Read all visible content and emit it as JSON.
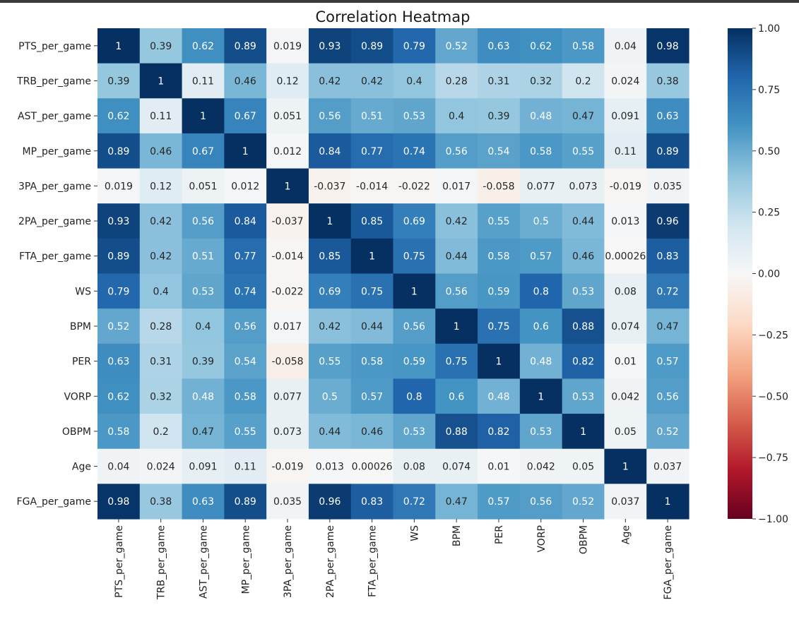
{
  "chart_data": {
    "type": "heatmap",
    "title": "Correlation Heatmap",
    "variables": [
      "PTS_per_game",
      "TRB_per_game",
      "AST_per_game",
      "MP_per_game",
      "3PA_per_game",
      "2PA_per_game",
      "FTA_per_game",
      "WS",
      "BPM",
      "PER",
      "VORP",
      "OBPM",
      "Age",
      "FGA_per_game"
    ],
    "matrix": [
      [
        1,
        0.39,
        0.62,
        0.89,
        0.019,
        0.93,
        0.89,
        0.79,
        0.52,
        0.63,
        0.62,
        0.58,
        0.04,
        0.98
      ],
      [
        0.39,
        1,
        0.11,
        0.46,
        0.12,
        0.42,
        0.42,
        0.4,
        0.28,
        0.31,
        0.32,
        0.2,
        0.024,
        0.38
      ],
      [
        0.62,
        0.11,
        1,
        0.67,
        0.051,
        0.56,
        0.51,
        0.53,
        0.4,
        0.39,
        0.48,
        0.47,
        0.091,
        0.63
      ],
      [
        0.89,
        0.46,
        0.67,
        1,
        0.012,
        0.84,
        0.77,
        0.74,
        0.56,
        0.54,
        0.58,
        0.55,
        0.11,
        0.89
      ],
      [
        0.019,
        0.12,
        0.051,
        0.012,
        1,
        -0.037,
        -0.014,
        -0.022,
        0.017,
        -0.058,
        0.077,
        0.073,
        -0.019,
        0.035
      ],
      [
        0.93,
        0.42,
        0.56,
        0.84,
        -0.037,
        1,
        0.85,
        0.69,
        0.42,
        0.55,
        0.5,
        0.44,
        0.013,
        0.96
      ],
      [
        0.89,
        0.42,
        0.51,
        0.77,
        -0.014,
        0.85,
        1,
        0.75,
        0.44,
        0.58,
        0.57,
        0.46,
        0.00026,
        0.83
      ],
      [
        0.79,
        0.4,
        0.53,
        0.74,
        -0.022,
        0.69,
        0.75,
        1,
        0.56,
        0.59,
        0.8,
        0.53,
        0.08,
        0.72
      ],
      [
        0.52,
        0.28,
        0.4,
        0.56,
        0.017,
        0.42,
        0.44,
        0.56,
        1,
        0.75,
        0.6,
        0.88,
        0.074,
        0.47
      ],
      [
        0.63,
        0.31,
        0.39,
        0.54,
        -0.058,
        0.55,
        0.58,
        0.59,
        0.75,
        1,
        0.48,
        0.82,
        0.01,
        0.57
      ],
      [
        0.62,
        0.32,
        0.48,
        0.58,
        0.077,
        0.5,
        0.57,
        0.8,
        0.6,
        0.48,
        1,
        0.53,
        0.042,
        0.56
      ],
      [
        0.58,
        0.2,
        0.47,
        0.55,
        0.073,
        0.44,
        0.46,
        0.53,
        0.88,
        0.82,
        0.53,
        1,
        0.05,
        0.52
      ],
      [
        0.04,
        0.024,
        0.091,
        0.11,
        -0.019,
        0.013,
        0.00026,
        0.08,
        0.074,
        0.01,
        0.042,
        0.05,
        1,
        0.037
      ],
      [
        0.98,
        0.38,
        0.63,
        0.89,
        0.035,
        0.96,
        0.83,
        0.72,
        0.47,
        0.57,
        0.56,
        0.52,
        0.037,
        1
      ]
    ],
    "vmin": -1,
    "vmax": 1,
    "colormap": "RdBu",
    "annotate": true,
    "colorbar": {
      "ticks": [
        1,
        0.75,
        0.5,
        0.25,
        0,
        -0.25,
        -0.5,
        -0.75,
        -1
      ],
      "tick_labels": [
        "1.00",
        "0.75",
        "0.50",
        "0.25",
        "0.00",
        "−0.25",
        "−0.50",
        "−0.75",
        "−1.00"
      ],
      "placement": "right"
    }
  }
}
